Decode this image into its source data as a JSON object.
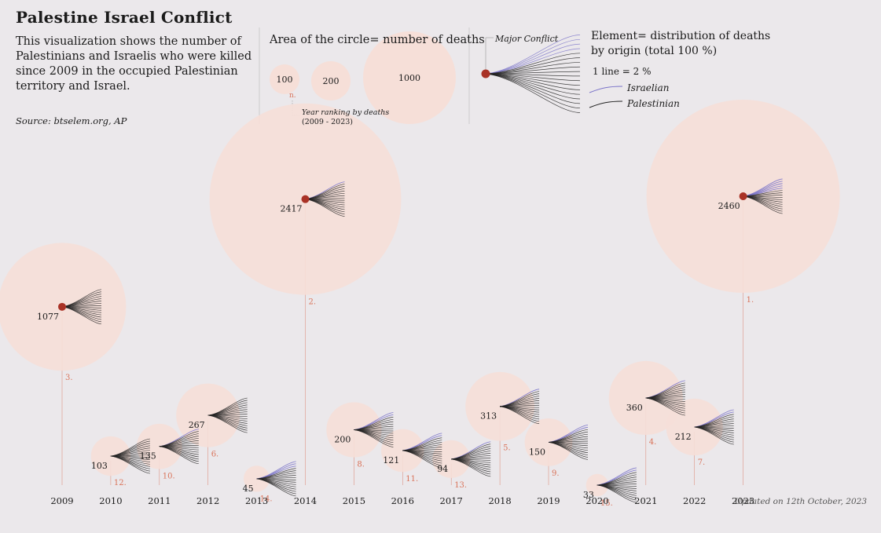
{
  "title": "Palestine Israel Conflict",
  "intro": "This visualization shows the number of Palestinians and Israelis who were killed since 2009 in the occupied Palestinian territory and Israel.",
  "source": "Source: btselem.org, AP",
  "legend": {
    "area_title": "Area of the circle= number of deaths",
    "sample_values": [
      "100",
      "200",
      "1000"
    ],
    "rank_marker": "n.",
    "rank_label_1": "Year ranking by deaths",
    "rank_label_2": "(2009 - 2023)",
    "major_conflict": "Major Conflict",
    "element_title": "Element= distribution of deaths by origin (total 100 %)",
    "line_note": "1 line = 2 %",
    "israelian": "Israelian",
    "palestinian": "Palestinian"
  },
  "updated": "Updated on 12th October, 2023",
  "colors": {
    "background": "#ebe8eb",
    "circle": "#f6dfd8",
    "rank": "#d9735a",
    "major": "#a93226",
    "israeli_line": "#7b74c9",
    "palestinian_line": "#222222"
  },
  "chart_data": {
    "type": "bubble",
    "x": [
      "2009",
      "2010",
      "2011",
      "2012",
      "2013",
      "2014",
      "2015",
      "2016",
      "2017",
      "2018",
      "2019",
      "2020",
      "2021",
      "2022",
      "2023"
    ],
    "deaths": [
      1077,
      103,
      135,
      267,
      45,
      2417,
      200,
      121,
      94,
      313,
      150,
      33,
      360,
      212,
      2460
    ],
    "rank": [
      "3.",
      "12.",
      "10.",
      "6.",
      "14.",
      "2.",
      "8.",
      "11.",
      "13.",
      "5.",
      "9.",
      "15.",
      "4.",
      "7.",
      "1."
    ],
    "major_conflict": [
      true,
      false,
      false,
      false,
      false,
      true,
      false,
      false,
      false,
      false,
      false,
      false,
      false,
      false,
      true
    ],
    "israeli_lines": [
      0,
      0,
      1,
      0,
      3,
      1,
      2,
      2,
      1,
      1,
      2,
      2,
      1,
      2,
      5
    ],
    "line_unit_percent": 2
  }
}
